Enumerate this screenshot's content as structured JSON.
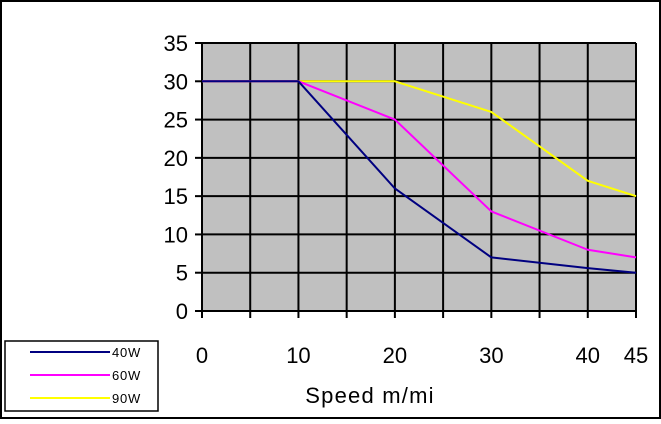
{
  "chart_data": {
    "type": "line",
    "title": "",
    "xlabel": "Speed  m/mi",
    "ylabel": "",
    "x": [
      0,
      10,
      20,
      30,
      40,
      45
    ],
    "xlim": [
      0,
      45
    ],
    "ylim": [
      0,
      35
    ],
    "x_ticks": [
      0,
      10,
      20,
      30,
      40,
      45
    ],
    "x_tick_labels": [
      "0",
      "10",
      "20",
      "30",
      "40",
      "45"
    ],
    "y_ticks": [
      0,
      5,
      10,
      15,
      20,
      25,
      30,
      35
    ],
    "y_tick_labels": [
      "0",
      "5",
      "10",
      "15",
      "20",
      "25",
      "30",
      "35"
    ],
    "grid": true,
    "legend_position": "bottom-left",
    "plot_background": "#c0c0c0",
    "grid_color": "#000000",
    "series": [
      {
        "name": "40W",
        "color": "#000080",
        "values": [
          30,
          30,
          16,
          7,
          5.6,
          5
        ]
      },
      {
        "name": "60W",
        "color": "#ff00ff",
        "values": [
          30,
          30,
          25,
          13,
          8,
          7
        ]
      },
      {
        "name": "90W",
        "color": "#ffff00",
        "values": [
          30,
          30,
          30,
          26,
          17,
          15
        ]
      }
    ]
  }
}
